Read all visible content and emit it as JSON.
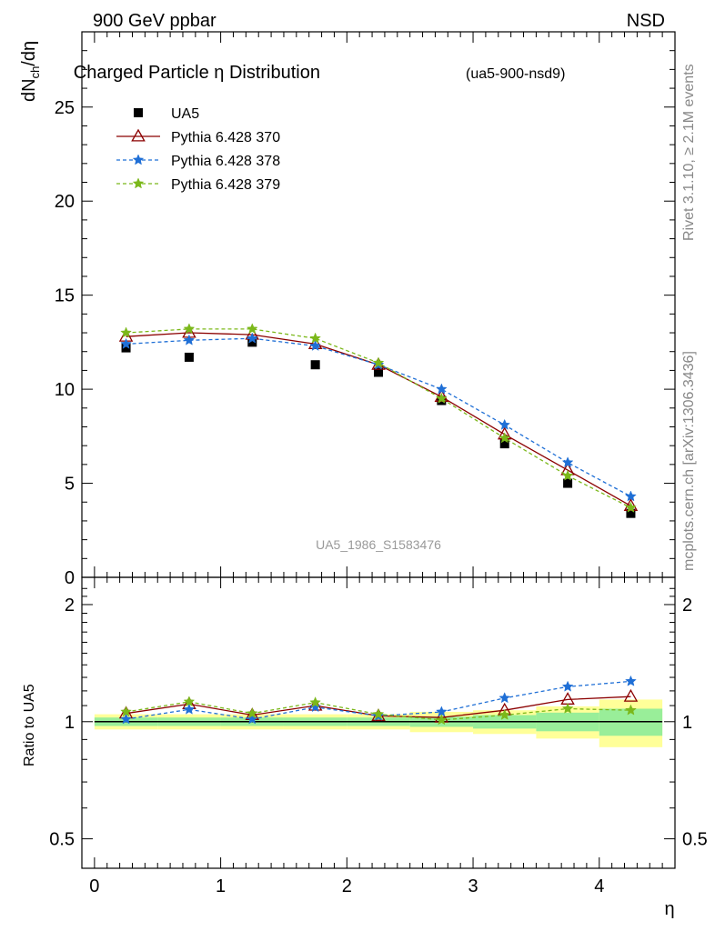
{
  "header": {
    "left": "900 GeV ppbar",
    "right": "NSD"
  },
  "watermark": "UA5_1986_S1583476",
  "side_texts": {
    "rivet": "Rivet 3.1.10, ≥ 2.1M events",
    "mcplots": "mcplots.cern.ch [arXiv:1306.3436]"
  },
  "chart_data": {
    "type": "line",
    "title": "Charged Particle η Distribution",
    "subtitle": "(ua5-900-nsd9)",
    "xlabel": "η",
    "ylabel": "dN_ch/dη",
    "xlim": [
      -0.1,
      4.6
    ],
    "ylim": [
      0,
      29
    ],
    "x_ticks": [
      0,
      1,
      2,
      3,
      4
    ],
    "y_ticks": [
      0,
      5,
      10,
      15,
      20,
      25
    ],
    "x_bin_edges": [
      0,
      0.5,
      1,
      1.5,
      2,
      2.5,
      3,
      3.5,
      4,
      4.5
    ],
    "x": [
      0.25,
      0.75,
      1.25,
      1.75,
      2.25,
      2.75,
      3.25,
      3.75,
      4.25
    ],
    "legend_position": "top-left",
    "series": [
      {
        "name": "UA5",
        "style": "data",
        "color": "#000000",
        "values": [
          12.2,
          11.7,
          12.5,
          11.3,
          10.9,
          9.4,
          7.1,
          5.0,
          3.4
        ]
      },
      {
        "name": "Pythia 6.428 370",
        "style": "solid-triangle",
        "color": "#8b0000",
        "values": [
          12.8,
          13.0,
          12.9,
          12.4,
          11.3,
          9.6,
          7.6,
          5.7,
          3.8
        ]
      },
      {
        "name": "Pythia 6.428 378",
        "style": "dashed-star",
        "color": "#1f6fd6",
        "values": [
          12.4,
          12.6,
          12.7,
          12.3,
          11.3,
          10.0,
          8.1,
          6.1,
          4.3
        ]
      },
      {
        "name": "Pythia 6.428 379",
        "style": "dashed-star",
        "color": "#7bb81a",
        "values": [
          13.0,
          13.2,
          13.2,
          12.7,
          11.4,
          9.5,
          7.4,
          5.4,
          3.7
        ]
      }
    ],
    "ratio": {
      "ylabel": "Ratio to UA5",
      "y_ticks": [
        0.5,
        1,
        2
      ],
      "ylim": [
        0.42,
        2.35
      ],
      "y_scale": "log",
      "band_2sigma": [
        [
          0.955,
          1.045
        ],
        [
          0.955,
          1.045
        ],
        [
          0.955,
          1.045
        ],
        [
          0.955,
          1.045
        ],
        [
          0.955,
          1.045
        ],
        [
          0.94,
          1.06
        ],
        [
          0.93,
          1.07
        ],
        [
          0.905,
          1.095
        ],
        [
          0.86,
          1.14
        ]
      ],
      "band_1sigma": [
        [
          0.975,
          1.025
        ],
        [
          0.975,
          1.025
        ],
        [
          0.975,
          1.025
        ],
        [
          0.975,
          1.025
        ],
        [
          0.975,
          1.025
        ],
        [
          0.97,
          1.03
        ],
        [
          0.96,
          1.04
        ],
        [
          0.945,
          1.055
        ],
        [
          0.92,
          1.08
        ]
      ],
      "series": [
        {
          "name": "Pythia 6.428 370",
          "values": [
            1.05,
            1.11,
            1.04,
            1.1,
            1.035,
            1.025,
            1.07,
            1.14,
            1.16
          ]
        },
        {
          "name": "Pythia 6.428 378",
          "values": [
            1.015,
            1.075,
            1.015,
            1.09,
            1.035,
            1.06,
            1.15,
            1.23,
            1.27
          ]
        },
        {
          "name": "Pythia 6.428 379",
          "values": [
            1.06,
            1.125,
            1.05,
            1.12,
            1.045,
            1.01,
            1.04,
            1.08,
            1.07
          ]
        }
      ]
    }
  }
}
